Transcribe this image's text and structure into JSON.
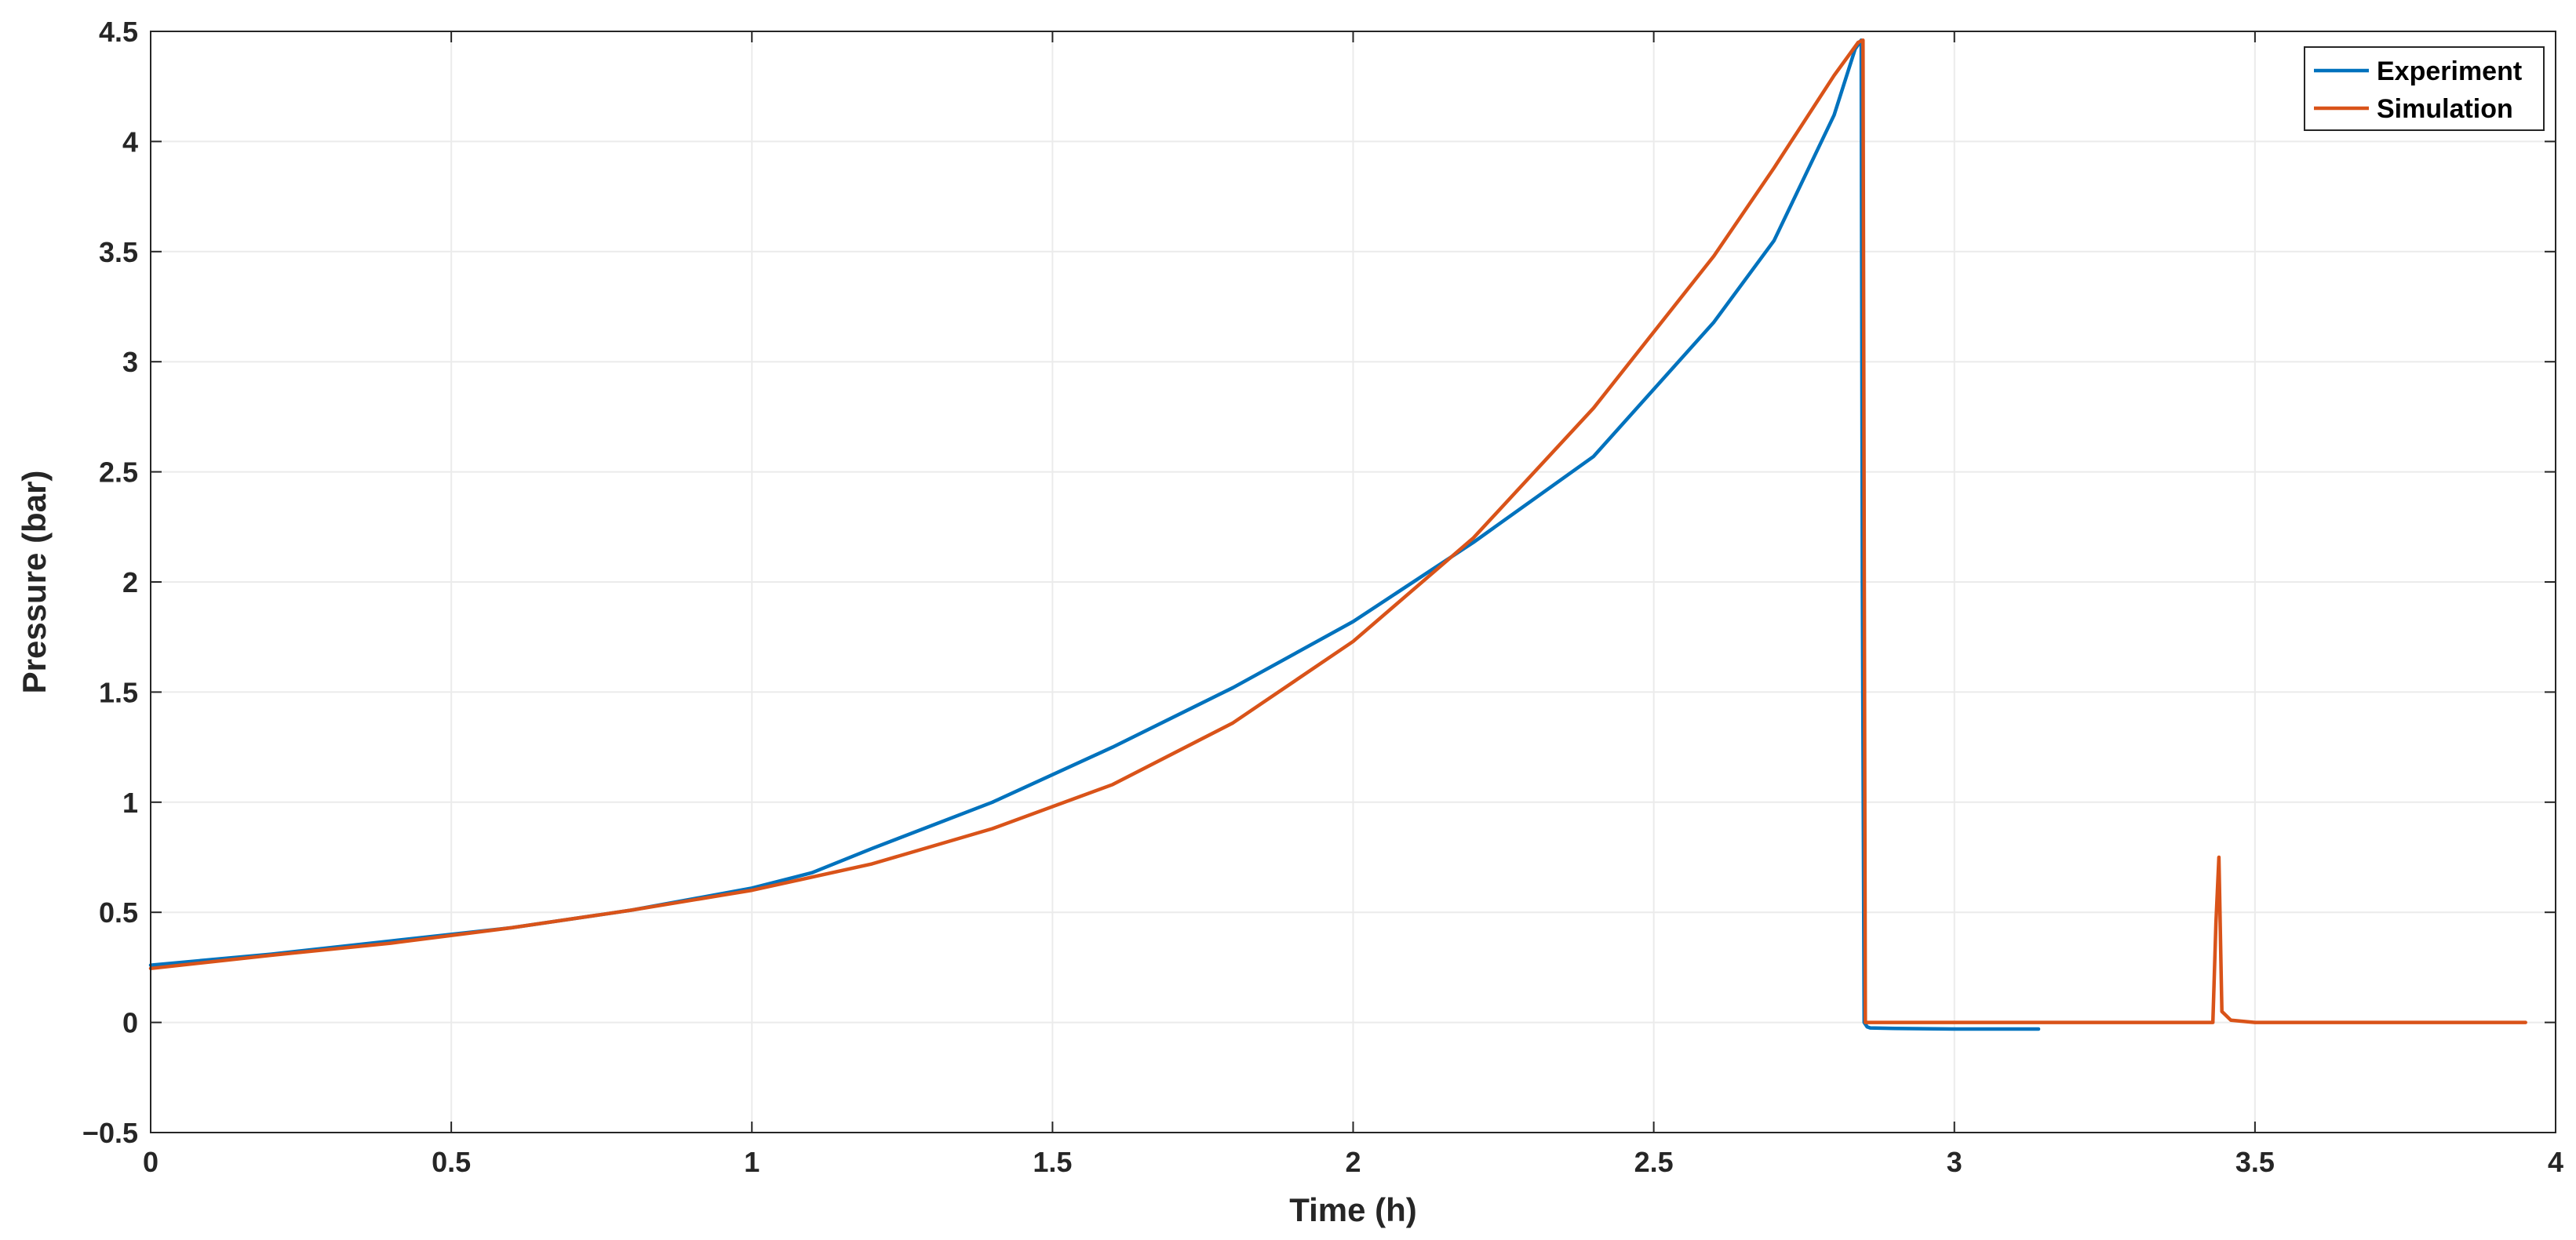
{
  "chart_data": {
    "type": "line",
    "xlabel": "Time (h)",
    "ylabel": "Pressure (bar)",
    "xlim": [
      0,
      4
    ],
    "ylim": [
      -0.5,
      4.5
    ],
    "xticks": [
      0,
      0.5,
      1,
      1.5,
      2,
      2.5,
      3,
      3.5,
      4
    ],
    "yticks": [
      -0.5,
      0,
      0.5,
      1,
      1.5,
      2,
      2.5,
      3,
      3.5,
      4,
      4.5
    ],
    "xtick_labels": [
      "0",
      "0.5",
      "1",
      "1.5",
      "2",
      "2.5",
      "3",
      "3.5",
      "4"
    ],
    "ytick_labels": [
      "−0.5",
      "0",
      "0.5",
      "1",
      "1.5",
      "2",
      "2.5",
      "3",
      "3.5",
      "4",
      "4.5"
    ],
    "grid": true,
    "legend_position": "top-right",
    "series": [
      {
        "name": "Experiment",
        "color": "#0072BD",
        "x": [
          0,
          0.2,
          0.4,
          0.6,
          0.8,
          1.0,
          1.1,
          1.2,
          1.4,
          1.6,
          1.8,
          2.0,
          2.2,
          2.4,
          2.6,
          2.7,
          2.8,
          2.835,
          2.845,
          2.847,
          2.85,
          2.855,
          2.86,
          2.9,
          3.0,
          3.1,
          3.14
        ],
        "y": [
          0.26,
          0.31,
          0.37,
          0.43,
          0.51,
          0.61,
          0.68,
          0.79,
          1.0,
          1.25,
          1.52,
          1.82,
          2.18,
          2.57,
          3.18,
          3.55,
          4.12,
          4.42,
          4.46,
          2.0,
          0.0,
          -0.02,
          -0.025,
          -0.027,
          -0.03,
          -0.03,
          -0.03
        ]
      },
      {
        "name": "Simulation",
        "color": "#D95319",
        "x": [
          0,
          0.2,
          0.4,
          0.6,
          0.8,
          1.0,
          1.2,
          1.4,
          1.6,
          1.8,
          2.0,
          2.2,
          2.4,
          2.6,
          2.7,
          2.8,
          2.84,
          2.848,
          2.852,
          2.86,
          3.0,
          3.2,
          3.43,
          3.435,
          3.44,
          3.445,
          3.46,
          3.5,
          3.7,
          3.95
        ],
        "y": [
          0.245,
          0.305,
          0.36,
          0.43,
          0.51,
          0.6,
          0.72,
          0.88,
          1.08,
          1.36,
          1.73,
          2.2,
          2.79,
          3.48,
          3.88,
          4.3,
          4.45,
          4.46,
          0.0,
          0.0,
          0.0,
          0.0,
          0.0,
          0.45,
          0.75,
          0.05,
          0.01,
          0.0,
          0.0,
          0.0
        ]
      }
    ]
  }
}
